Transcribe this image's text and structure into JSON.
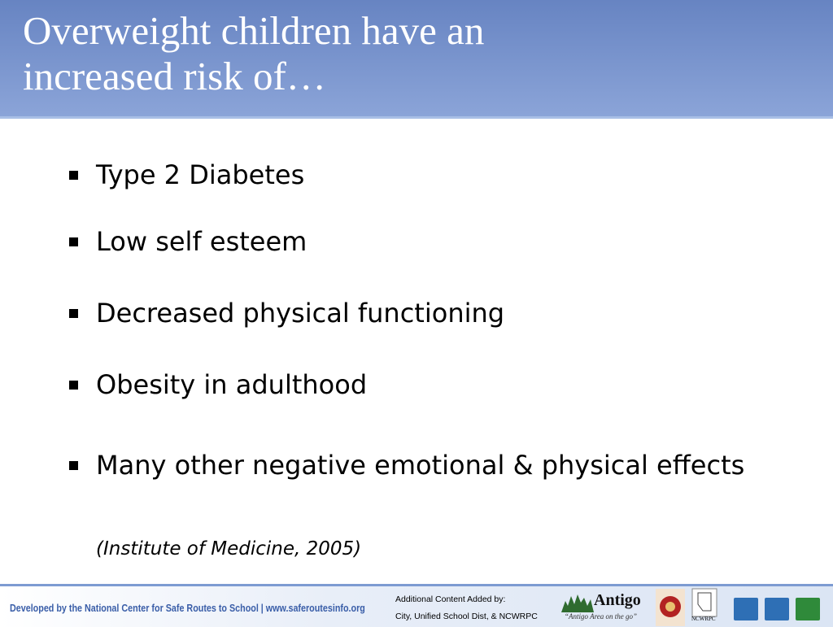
{
  "header": {
    "title": "Overweight children have an increased risk of…"
  },
  "bullets": [
    "Type 2 Diabetes",
    "Low self esteem",
    "Decreased physical functioning",
    "Obesity in adulthood",
    "Many other negative emotional & physical effects"
  ],
  "citation": "(Institute of Medicine, 2005)",
  "footer": {
    "developed_by": "Developed by the National Center for Safe Routes to School | www.saferoutesinfo.org",
    "credit_line_1": "Additional Content Added by:",
    "credit_line_2": "City, Unified School Dist, & NCWRPC",
    "logo_name": "Antigo",
    "logo_tagline": "“Antigo Area on the go”",
    "ncwrpc": "NCWRPC"
  }
}
